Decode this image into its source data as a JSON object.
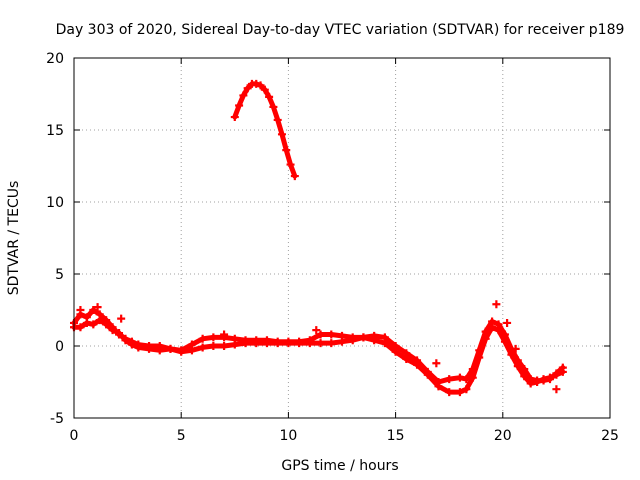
{
  "chart_data": {
    "type": "scatter",
    "title": "Day 303 of 2020, Sidereal Day-to-day VTEC variation (SDTVAR) for receiver p189",
    "xlabel": "GPS time / hours",
    "ylabel": "SDTVAR / TECUs",
    "xlim": [
      0,
      25
    ],
    "ylim": [
      -5,
      20
    ],
    "xticks": [
      0,
      5,
      10,
      15,
      20,
      25
    ],
    "yticks": [
      -5,
      0,
      5,
      10,
      15,
      20
    ],
    "grid": true,
    "marker": "+",
    "series": [
      {
        "name": "SDTVAR p189 (upper arc)",
        "color": "#ff0000",
        "points": [
          [
            7.5,
            15.9
          ],
          [
            7.7,
            16.7
          ],
          [
            7.9,
            17.4
          ],
          [
            8.1,
            17.9
          ],
          [
            8.3,
            18.2
          ],
          [
            8.5,
            18.2
          ],
          [
            8.7,
            18.1
          ],
          [
            8.9,
            17.8
          ],
          [
            9.1,
            17.3
          ],
          [
            9.3,
            16.6
          ],
          [
            9.5,
            15.7
          ],
          [
            9.7,
            14.7
          ],
          [
            9.9,
            13.6
          ],
          [
            10.1,
            12.6
          ],
          [
            10.3,
            11.8
          ]
        ]
      },
      {
        "name": "SDTVAR p189 (band A)",
        "color": "#ff0000",
        "points": [
          [
            0.0,
            1.6
          ],
          [
            0.3,
            2.2
          ],
          [
            0.6,
            2.0
          ],
          [
            0.9,
            2.5
          ],
          [
            1.2,
            2.2
          ],
          [
            1.5,
            1.8
          ],
          [
            1.8,
            1.3
          ],
          [
            2.1,
            0.8
          ],
          [
            2.4,
            0.5
          ],
          [
            2.7,
            0.3
          ],
          [
            3.0,
            0.1
          ],
          [
            3.5,
            0.0
          ],
          [
            4.0,
            0.0
          ],
          [
            4.5,
            -0.2
          ],
          [
            5.0,
            -0.3
          ],
          [
            5.5,
            0.1
          ],
          [
            6.0,
            0.5
          ],
          [
            6.5,
            0.6
          ],
          [
            7.0,
            0.6
          ],
          [
            7.5,
            0.5
          ],
          [
            8.0,
            0.4
          ],
          [
            8.5,
            0.4
          ],
          [
            9.0,
            0.4
          ],
          [
            9.5,
            0.3
          ],
          [
            10.0,
            0.3
          ],
          [
            10.5,
            0.3
          ],
          [
            11.0,
            0.4
          ],
          [
            11.5,
            0.8
          ],
          [
            12.0,
            0.8
          ],
          [
            12.5,
            0.7
          ],
          [
            13.0,
            0.6
          ],
          [
            13.5,
            0.6
          ],
          [
            14.0,
            0.7
          ],
          [
            14.5,
            0.6
          ],
          [
            15.0,
            0.0
          ],
          [
            15.5,
            -0.5
          ],
          [
            16.0,
            -1.0
          ],
          [
            16.5,
            -1.8
          ],
          [
            17.0,
            -2.5
          ],
          [
            17.5,
            -2.3
          ],
          [
            18.0,
            -2.2
          ],
          [
            18.3,
            -2.3
          ],
          [
            18.6,
            -1.6
          ],
          [
            18.9,
            -0.3
          ],
          [
            19.2,
            1.0
          ],
          [
            19.5,
            1.7
          ],
          [
            19.8,
            1.5
          ],
          [
            20.1,
            0.8
          ],
          [
            20.4,
            -0.2
          ],
          [
            20.7,
            -1.0
          ],
          [
            21.0,
            -1.6
          ],
          [
            21.3,
            -2.3
          ],
          [
            21.6,
            -2.4
          ],
          [
            21.9,
            -2.4
          ],
          [
            22.2,
            -2.3
          ],
          [
            22.5,
            -1.9
          ],
          [
            22.8,
            -1.5
          ]
        ]
      },
      {
        "name": "SDTVAR p189 (band B)",
        "color": "#ff0000",
        "points": [
          [
            0.0,
            1.3
          ],
          [
            0.3,
            1.3
          ],
          [
            0.6,
            1.6
          ],
          [
            0.9,
            1.5
          ],
          [
            1.2,
            1.8
          ],
          [
            1.5,
            1.5
          ],
          [
            1.8,
            1.1
          ],
          [
            2.1,
            0.9
          ],
          [
            2.4,
            0.4
          ],
          [
            2.7,
            0.1
          ],
          [
            3.0,
            -0.1
          ],
          [
            3.5,
            -0.2
          ],
          [
            4.0,
            -0.3
          ],
          [
            4.5,
            -0.2
          ],
          [
            5.0,
            -0.4
          ],
          [
            5.5,
            -0.3
          ],
          [
            6.0,
            -0.1
          ],
          [
            6.5,
            0.0
          ],
          [
            7.0,
            0.0
          ],
          [
            7.5,
            0.1
          ],
          [
            8.0,
            0.2
          ],
          [
            8.5,
            0.2
          ],
          [
            9.0,
            0.2
          ],
          [
            9.5,
            0.2
          ],
          [
            10.0,
            0.2
          ],
          [
            10.5,
            0.2
          ],
          [
            11.0,
            0.2
          ],
          [
            11.5,
            0.2
          ],
          [
            12.0,
            0.2
          ],
          [
            12.5,
            0.3
          ],
          [
            13.0,
            0.4
          ],
          [
            13.5,
            0.6
          ],
          [
            14.0,
            0.4
          ],
          [
            14.5,
            0.2
          ],
          [
            15.0,
            -0.4
          ],
          [
            15.5,
            -0.9
          ],
          [
            16.0,
            -1.3
          ],
          [
            16.5,
            -2.0
          ],
          [
            17.0,
            -2.8
          ],
          [
            17.5,
            -3.2
          ],
          [
            18.0,
            -3.2
          ],
          [
            18.3,
            -3.0
          ],
          [
            18.6,
            -2.2
          ],
          [
            18.9,
            -0.8
          ],
          [
            19.2,
            0.5
          ],
          [
            19.5,
            1.3
          ],
          [
            19.8,
            1.1
          ],
          [
            20.1,
            0.3
          ],
          [
            20.4,
            -0.6
          ],
          [
            20.7,
            -1.4
          ],
          [
            21.0,
            -2.1
          ],
          [
            21.3,
            -2.6
          ],
          [
            21.6,
            -2.5
          ],
          [
            21.9,
            -2.3
          ],
          [
            22.2,
            -2.2
          ],
          [
            22.5,
            -2.0
          ],
          [
            22.8,
            -1.8
          ]
        ]
      },
      {
        "name": "SDTVAR p189 (spikes)",
        "color": "#ff0000",
        "points": [
          [
            0.3,
            2.5
          ],
          [
            1.1,
            2.7
          ],
          [
            2.2,
            1.9
          ],
          [
            7.0,
            0.8
          ],
          [
            11.3,
            1.1
          ],
          [
            16.9,
            -1.2
          ],
          [
            19.7,
            2.9
          ],
          [
            20.2,
            1.6
          ],
          [
            20.6,
            -0.2
          ],
          [
            22.5,
            -3.0
          ]
        ]
      }
    ]
  }
}
